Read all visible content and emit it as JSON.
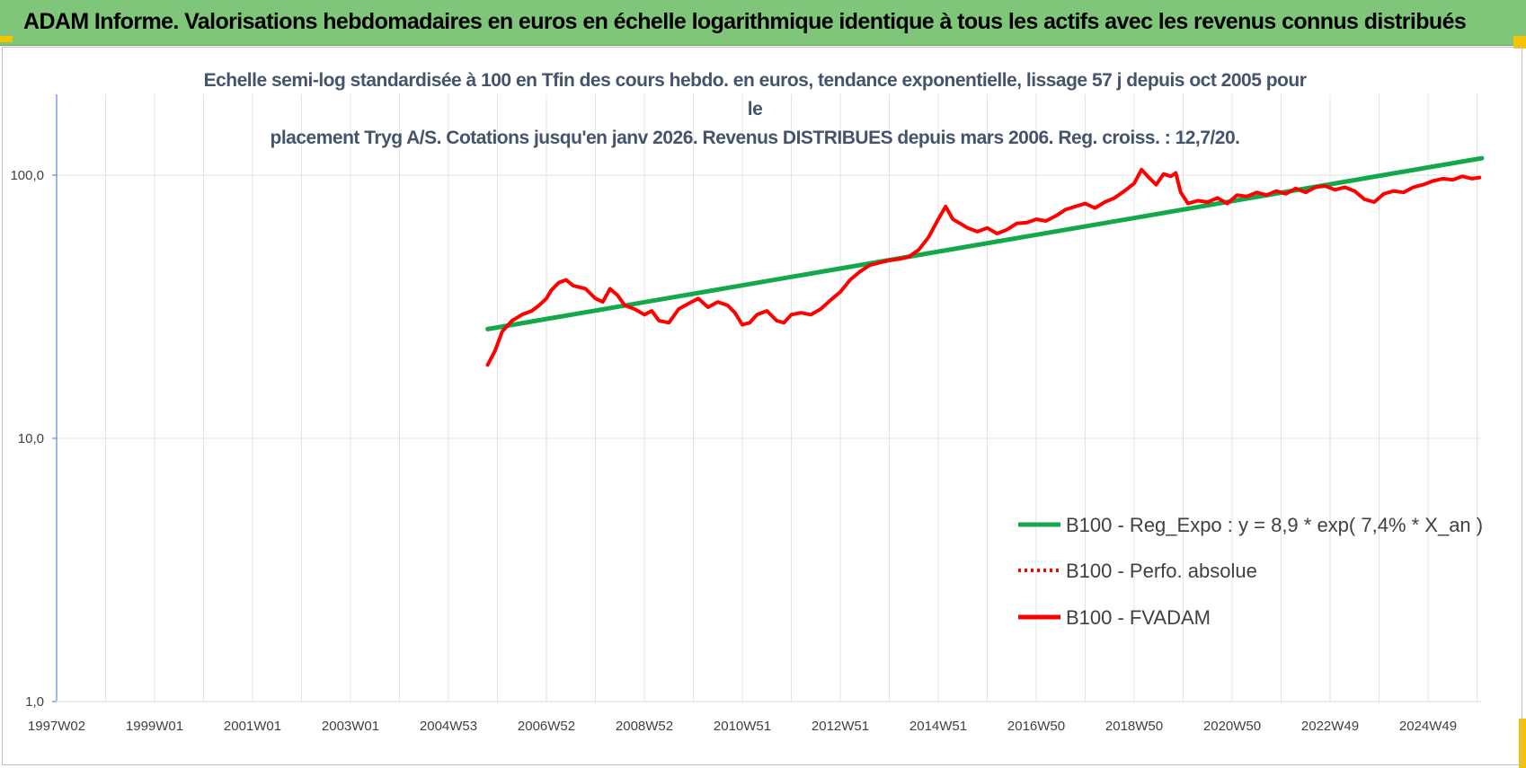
{
  "banner": {
    "title": "ADAM Informe. Valorisations hebdomadaires en euros en échelle logarithmique identique à tous les actifs avec les revenus connus distribués"
  },
  "colors": {
    "banner_bg": "#80c67a",
    "corner_accent": "#f5c400",
    "regression": "#13a84a",
    "performance": "#ff0000",
    "title_text": "#44546a"
  },
  "chart_data": {
    "type": "line",
    "title_line1": "Echelle semi-log standardisée à 100 en Tfin des cours hebdo. en euros, tendance exponentielle, lissage 57 j depuis oct 2005 pour le",
    "title_line2": "placement Tryg A/S. Cotations jusqu'en janv 2026. Revenus DISTRIBUES depuis mars 2006. Reg. croiss. : 12,7/20.",
    "y_scale": "log",
    "ylim": [
      1,
      200
    ],
    "y_ticks": [
      {
        "value": 1,
        "label": "1,0"
      },
      {
        "value": 10,
        "label": "10,0"
      },
      {
        "value": 100,
        "label": "100,0"
      }
    ],
    "x_range_years": [
      1997.0,
      2026.1
    ],
    "x_ticks": [
      {
        "year": 1997.0,
        "label": "1997W02"
      },
      {
        "year": 1999.0,
        "label": "1999W01"
      },
      {
        "year": 2001.0,
        "label": "2001W01"
      },
      {
        "year": 2003.0,
        "label": "2003W01"
      },
      {
        "year": 2005.0,
        "label": "2004W53"
      },
      {
        "year": 2007.0,
        "label": "2006W52"
      },
      {
        "year": 2009.0,
        "label": "2008W52"
      },
      {
        "year": 2011.0,
        "label": "2010W51"
      },
      {
        "year": 2013.0,
        "label": "2012W51"
      },
      {
        "year": 2015.0,
        "label": "2014W51"
      },
      {
        "year": 2017.0,
        "label": "2016W50"
      },
      {
        "year": 2019.0,
        "label": "2018W50"
      },
      {
        "year": 2021.0,
        "label": "2020W50"
      },
      {
        "year": 2023.0,
        "label": "2022W49"
      },
      {
        "year": 2025.0,
        "label": "2024W49"
      }
    ],
    "grid": true,
    "legend_position": "lower-right",
    "series": [
      {
        "name": "B100 - Reg_Expo : y = 8,9 * exp( 7,4% *  X_an )",
        "style": "solid",
        "color": "#13a84a",
        "points": [
          [
            2005.8,
            26.0
          ],
          [
            2026.1,
            116.0
          ]
        ]
      },
      {
        "name": "B100 - Perfo. absolue",
        "style": "dotted",
        "color": "#ff0000",
        "points": []
      },
      {
        "name": "B100 - FVADAM",
        "style": "solid",
        "color": "#ff0000",
        "points": [
          [
            2005.8,
            19.0
          ],
          [
            2005.95,
            21.5
          ],
          [
            2006.1,
            25.5
          ],
          [
            2006.3,
            28.0
          ],
          [
            2006.5,
            29.5
          ],
          [
            2006.7,
            30.5
          ],
          [
            2006.85,
            32.0
          ],
          [
            2007.0,
            34.0
          ],
          [
            2007.1,
            36.5
          ],
          [
            2007.25,
            39.0
          ],
          [
            2007.4,
            40.0
          ],
          [
            2007.55,
            38.0
          ],
          [
            2007.8,
            37.0
          ],
          [
            2008.0,
            34.0
          ],
          [
            2008.15,
            33.0
          ],
          [
            2008.3,
            37.0
          ],
          [
            2008.45,
            35.0
          ],
          [
            2008.6,
            32.0
          ],
          [
            2008.8,
            31.0
          ],
          [
            2009.0,
            29.5
          ],
          [
            2009.15,
            30.5
          ],
          [
            2009.3,
            28.0
          ],
          [
            2009.5,
            27.5
          ],
          [
            2009.7,
            31.0
          ],
          [
            2009.9,
            32.5
          ],
          [
            2010.1,
            34.0
          ],
          [
            2010.3,
            31.5
          ],
          [
            2010.5,
            33.0
          ],
          [
            2010.7,
            32.0
          ],
          [
            2010.85,
            30.0
          ],
          [
            2011.0,
            27.0
          ],
          [
            2011.15,
            27.5
          ],
          [
            2011.3,
            29.5
          ],
          [
            2011.5,
            30.5
          ],
          [
            2011.7,
            28.0
          ],
          [
            2011.85,
            27.5
          ],
          [
            2012.0,
            29.5
          ],
          [
            2012.2,
            30.0
          ],
          [
            2012.4,
            29.5
          ],
          [
            2012.6,
            31.0
          ],
          [
            2012.8,
            33.5
          ],
          [
            2013.0,
            36.0
          ],
          [
            2013.2,
            40.0
          ],
          [
            2013.4,
            43.0
          ],
          [
            2013.6,
            45.5
          ],
          [
            2013.8,
            46.5
          ],
          [
            2014.0,
            47.5
          ],
          [
            2014.2,
            48.0
          ],
          [
            2014.4,
            49.0
          ],
          [
            2014.6,
            52.0
          ],
          [
            2014.8,
            58.0
          ],
          [
            2015.0,
            68.0
          ],
          [
            2015.15,
            76.0
          ],
          [
            2015.3,
            68.0
          ],
          [
            2015.45,
            65.5
          ],
          [
            2015.6,
            63.0
          ],
          [
            2015.8,
            61.0
          ],
          [
            2016.0,
            63.0
          ],
          [
            2016.2,
            60.0
          ],
          [
            2016.4,
            62.0
          ],
          [
            2016.6,
            65.5
          ],
          [
            2016.8,
            66.0
          ],
          [
            2017.0,
            68.0
          ],
          [
            2017.2,
            67.0
          ],
          [
            2017.4,
            70.0
          ],
          [
            2017.6,
            74.0
          ],
          [
            2017.8,
            76.0
          ],
          [
            2018.0,
            78.0
          ],
          [
            2018.2,
            75.0
          ],
          [
            2018.4,
            79.0
          ],
          [
            2018.6,
            82.0
          ],
          [
            2018.8,
            87.0
          ],
          [
            2019.0,
            93.0
          ],
          [
            2019.15,
            105.0
          ],
          [
            2019.3,
            98.0
          ],
          [
            2019.45,
            92.0
          ],
          [
            2019.6,
            101.0
          ],
          [
            2019.75,
            99.0
          ],
          [
            2019.85,
            102.0
          ],
          [
            2019.95,
            86.0
          ],
          [
            2020.1,
            78.0
          ],
          [
            2020.3,
            80.0
          ],
          [
            2020.5,
            79.0
          ],
          [
            2020.7,
            82.0
          ],
          [
            2020.9,
            78.0
          ],
          [
            2021.1,
            84.0
          ],
          [
            2021.3,
            83.0
          ],
          [
            2021.5,
            86.0
          ],
          [
            2021.7,
            84.0
          ],
          [
            2021.9,
            87.0
          ],
          [
            2022.1,
            85.0
          ],
          [
            2022.3,
            89.0
          ],
          [
            2022.5,
            86.0
          ],
          [
            2022.7,
            90.0
          ],
          [
            2022.9,
            91.0
          ],
          [
            2023.1,
            88.0
          ],
          [
            2023.3,
            90.0
          ],
          [
            2023.5,
            87.0
          ],
          [
            2023.7,
            81.0
          ],
          [
            2023.9,
            79.0
          ],
          [
            2024.1,
            85.0
          ],
          [
            2024.3,
            87.0
          ],
          [
            2024.5,
            86.0
          ],
          [
            2024.7,
            90.0
          ],
          [
            2024.9,
            92.0
          ],
          [
            2025.1,
            95.0
          ],
          [
            2025.3,
            97.0
          ],
          [
            2025.5,
            96.0
          ],
          [
            2025.7,
            99.0
          ],
          [
            2025.9,
            97.0
          ],
          [
            2026.05,
            98.0
          ]
        ]
      }
    ]
  }
}
